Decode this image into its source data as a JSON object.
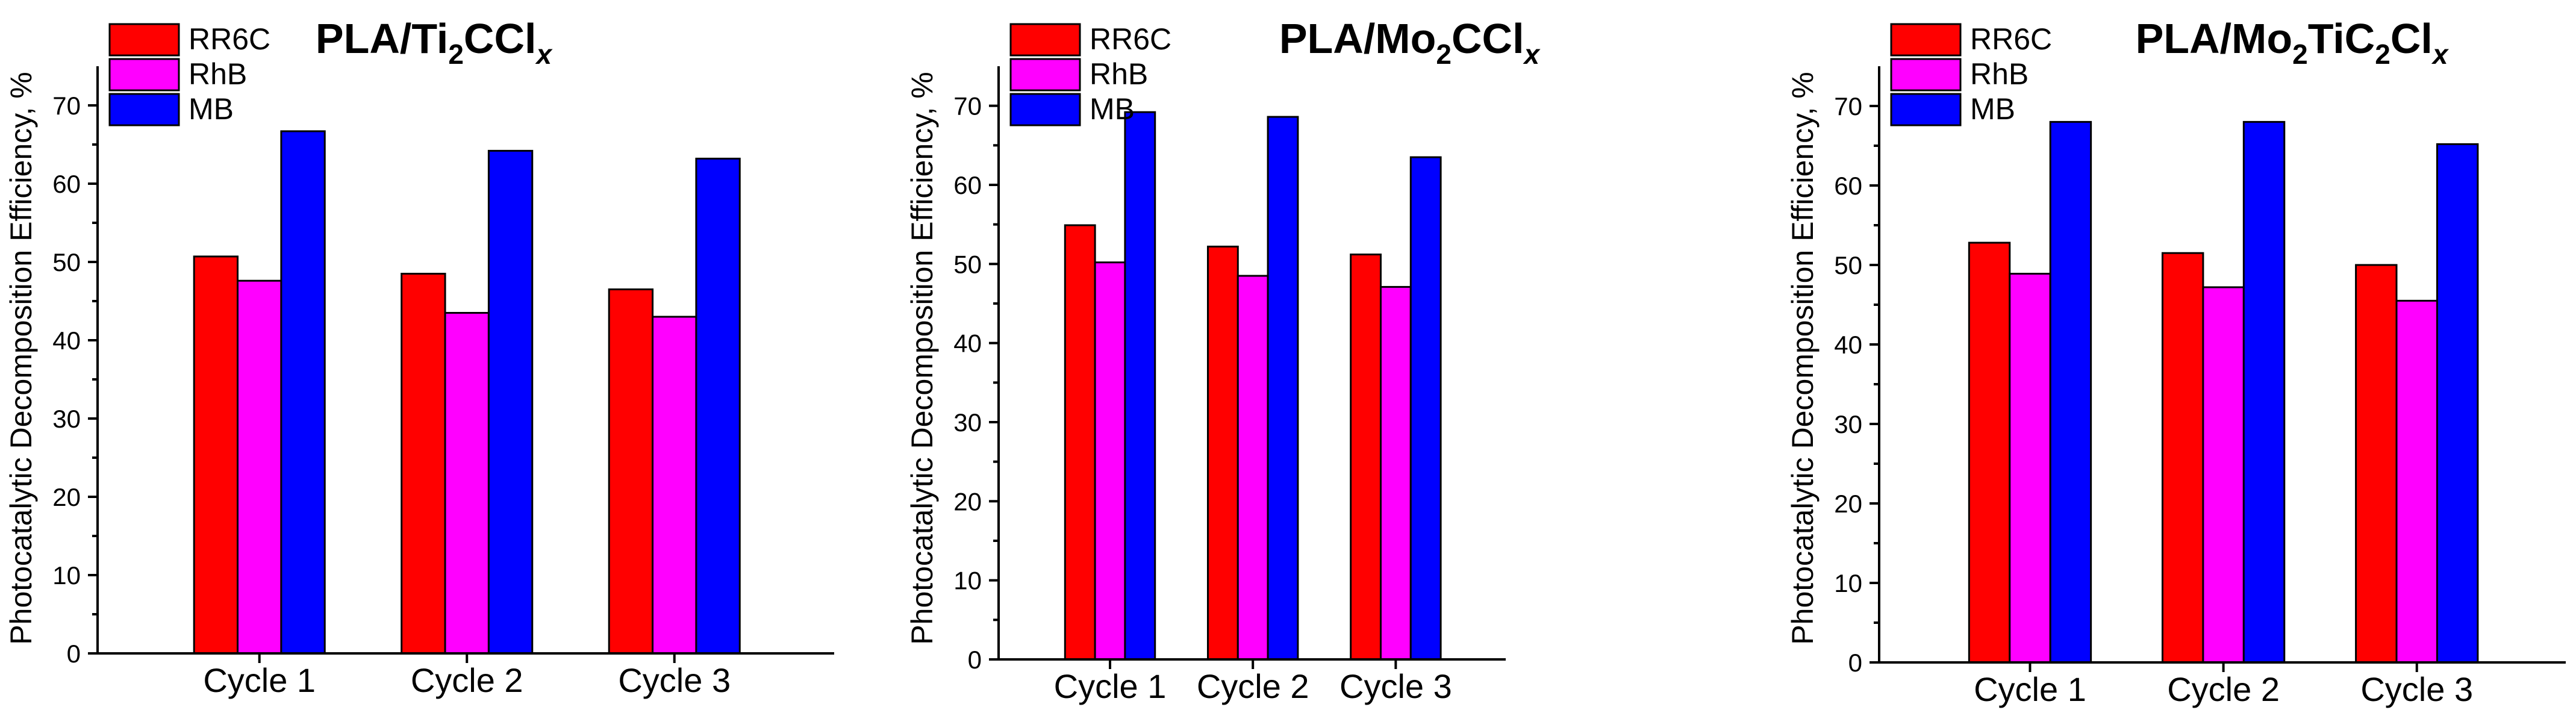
{
  "colors": {
    "RR6C": "#ff0000",
    "RhB": "#ff00ff",
    "MB": "#0000ff"
  },
  "chart_data": [
    {
      "type": "bar",
      "title": {
        "base": "PLA/Ti",
        "sub1": "2",
        "mid": "CCl",
        "italic": "x"
      },
      "ylabel": "Photocatalytic Decomposition Efficiency, %",
      "xlabel": "",
      "ylim": [
        0,
        75
      ],
      "yticks": [
        0,
        10,
        20,
        30,
        40,
        50,
        60,
        70
      ],
      "categories": [
        "Cycle 1",
        "Cycle 2",
        "Cycle 3"
      ],
      "legend_position": "top-left",
      "series": [
        {
          "name": "RR6C",
          "values": [
            50.7,
            48.5,
            46.5
          ]
        },
        {
          "name": "RhB",
          "values": [
            47.6,
            43.5,
            43.0
          ]
        },
        {
          "name": "MB",
          "values": [
            66.7,
            64.2,
            63.2
          ]
        }
      ]
    },
    {
      "type": "bar",
      "title": {
        "base": "PLA/Mo",
        "sub1": "2",
        "mid": "CCl",
        "italic": "x"
      },
      "ylabel": "Photocatalytic Decomposition Efficiency, %",
      "xlabel": "",
      "ylim": [
        0,
        75
      ],
      "yticks": [
        0,
        10,
        20,
        30,
        40,
        50,
        60,
        70
      ],
      "categories": [
        "Cycle 1",
        "Cycle 2",
        "Cycle 3"
      ],
      "legend_position": "top-left",
      "series": [
        {
          "name": "RR6C",
          "values": [
            54.9,
            52.2,
            51.2
          ]
        },
        {
          "name": "RhB",
          "values": [
            50.2,
            48.5,
            47.1
          ]
        },
        {
          "name": "MB",
          "values": [
            69.2,
            68.6,
            63.5
          ]
        }
      ]
    },
    {
      "type": "bar",
      "title": {
        "base": "PLA/Mo",
        "sub1": "2",
        "mid": "TiC",
        "sub2": "2",
        "end": "Cl",
        "italic": "x"
      },
      "ylabel": "Photocatalytic Decomposition Efficiency, %",
      "xlabel": "",
      "ylim": [
        0,
        75
      ],
      "yticks": [
        0,
        10,
        20,
        30,
        40,
        50,
        60,
        70
      ],
      "categories": [
        "Cycle 1",
        "Cycle 2",
        "Cycle 3"
      ],
      "legend_position": "top-left",
      "series": [
        {
          "name": "RR6C",
          "values": [
            52.8,
            51.5,
            50.0
          ]
        },
        {
          "name": "RhB",
          "values": [
            48.9,
            47.2,
            45.5
          ]
        },
        {
          "name": "MB",
          "values": [
            68.0,
            68.0,
            65.2
          ]
        }
      ]
    }
  ]
}
